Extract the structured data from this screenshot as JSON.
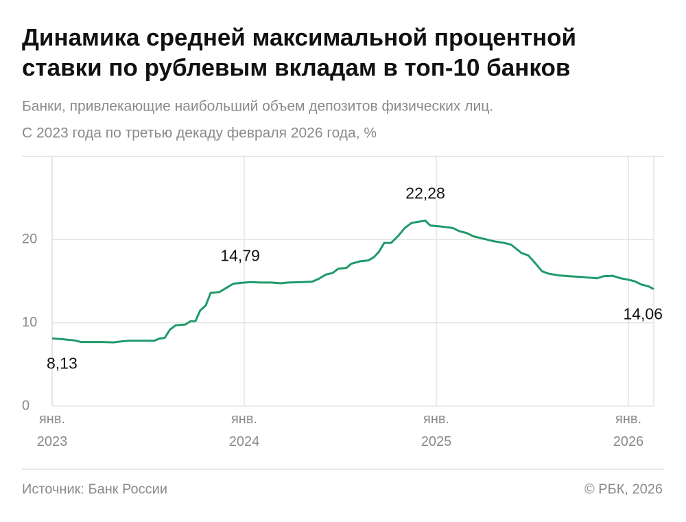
{
  "chart_data": {
    "type": "line",
    "title": [
      "Динамика средней максимальной процентной",
      "ставки по рублевым вкладам в топ-10 банков"
    ],
    "subtitle": [
      "Банки, привлекающие наибольший объем депозитов физических лиц.",
      "С 2023 года по третью декаду февраля 2026 года, %"
    ],
    "source": "Источник: Банк России",
    "credit": "© РБК, 2026",
    "xlim": [
      2023,
      2026.132
    ],
    "ylim": [
      0,
      30
    ],
    "yticks": [
      0,
      10,
      20
    ],
    "xticks": [
      {
        "value": 2023,
        "label": "янв. 2023"
      },
      {
        "value": 2024,
        "label": "янв. 2024"
      },
      {
        "value": 2025,
        "label": "янв. 2025"
      },
      {
        "value": 2026,
        "label": "янв. 2026"
      }
    ],
    "grid": true,
    "series": [
      {
        "color": "#1f9a6a",
        "x": [
          2023.0,
          2023.05,
          2023.086,
          2023.114,
          2023.15,
          2023.264,
          2023.318,
          2023.371,
          2023.407,
          2023.532,
          2023.557,
          2023.586,
          2023.614,
          2023.643,
          2023.693,
          2023.721,
          2023.746,
          2023.771,
          2023.8,
          2023.825,
          2023.871,
          2023.907,
          2023.943,
          2023.979,
          2024.032,
          2024.086,
          2024.139,
          2024.193,
          2024.229,
          2024.3,
          2024.354,
          2024.389,
          2024.425,
          2024.461,
          2024.489,
          2024.532,
          2024.557,
          2024.604,
          2024.646,
          2024.675,
          2024.7,
          2024.729,
          2024.764,
          2024.8,
          2024.836,
          2024.871,
          2024.907,
          2024.943,
          2024.968,
          2025.014,
          2025.05,
          2025.086,
          2025.121,
          2025.157,
          2025.193,
          2025.229,
          2025.264,
          2025.3,
          2025.354,
          2025.389,
          2025.443,
          2025.479,
          2025.514,
          2025.55,
          2025.586,
          2025.639,
          2025.693,
          2025.764,
          2025.836,
          2025.871,
          2025.918,
          2025.961,
          2025.996,
          2026.032,
          2026.068,
          2026.104,
          2026.132
        ],
        "values": [
          8.13,
          8.05,
          7.95,
          7.9,
          7.7,
          7.7,
          7.65,
          7.8,
          7.85,
          7.85,
          8.1,
          8.2,
          9.2,
          9.7,
          9.8,
          10.2,
          10.2,
          11.5,
          12.1,
          13.6,
          13.7,
          14.2,
          14.7,
          14.79,
          14.9,
          14.85,
          14.85,
          14.75,
          14.85,
          14.9,
          14.95,
          15.3,
          15.8,
          16.0,
          16.5,
          16.6,
          17.1,
          17.4,
          17.5,
          17.9,
          18.5,
          19.6,
          19.6,
          20.4,
          21.4,
          22.0,
          22.15,
          22.28,
          21.7,
          21.6,
          21.5,
          21.4,
          21.0,
          20.8,
          20.4,
          20.2,
          20.0,
          19.8,
          19.6,
          19.4,
          18.4,
          18.1,
          17.2,
          16.2,
          15.9,
          15.7,
          15.6,
          15.5,
          15.35,
          15.6,
          15.65,
          15.35,
          15.2,
          15.0,
          14.6,
          14.4,
          14.06
        ]
      }
    ],
    "annotations": [
      {
        "x": 2023.0,
        "y": 8.13,
        "label": "8,13",
        "pos": "below"
      },
      {
        "x": 2023.979,
        "y": 14.79,
        "label": "14,79",
        "pos": "above"
      },
      {
        "x": 2024.943,
        "y": 22.28,
        "label": "22,28",
        "pos": "above"
      },
      {
        "x": 2026.132,
        "y": 14.06,
        "label": "14,06",
        "pos": "below"
      }
    ]
  }
}
